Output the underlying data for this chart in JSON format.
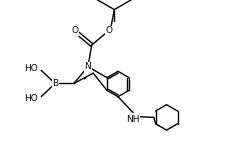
{
  "background_color": "#ffffff",
  "line_color": "#000000",
  "lw": 1.0,
  "fs": 6.5,
  "figsize": [
    2.44,
    1.56
  ],
  "dpi": 100,
  "xlim": [
    0,
    2.44
  ],
  "ylim": [
    0,
    1.56
  ]
}
